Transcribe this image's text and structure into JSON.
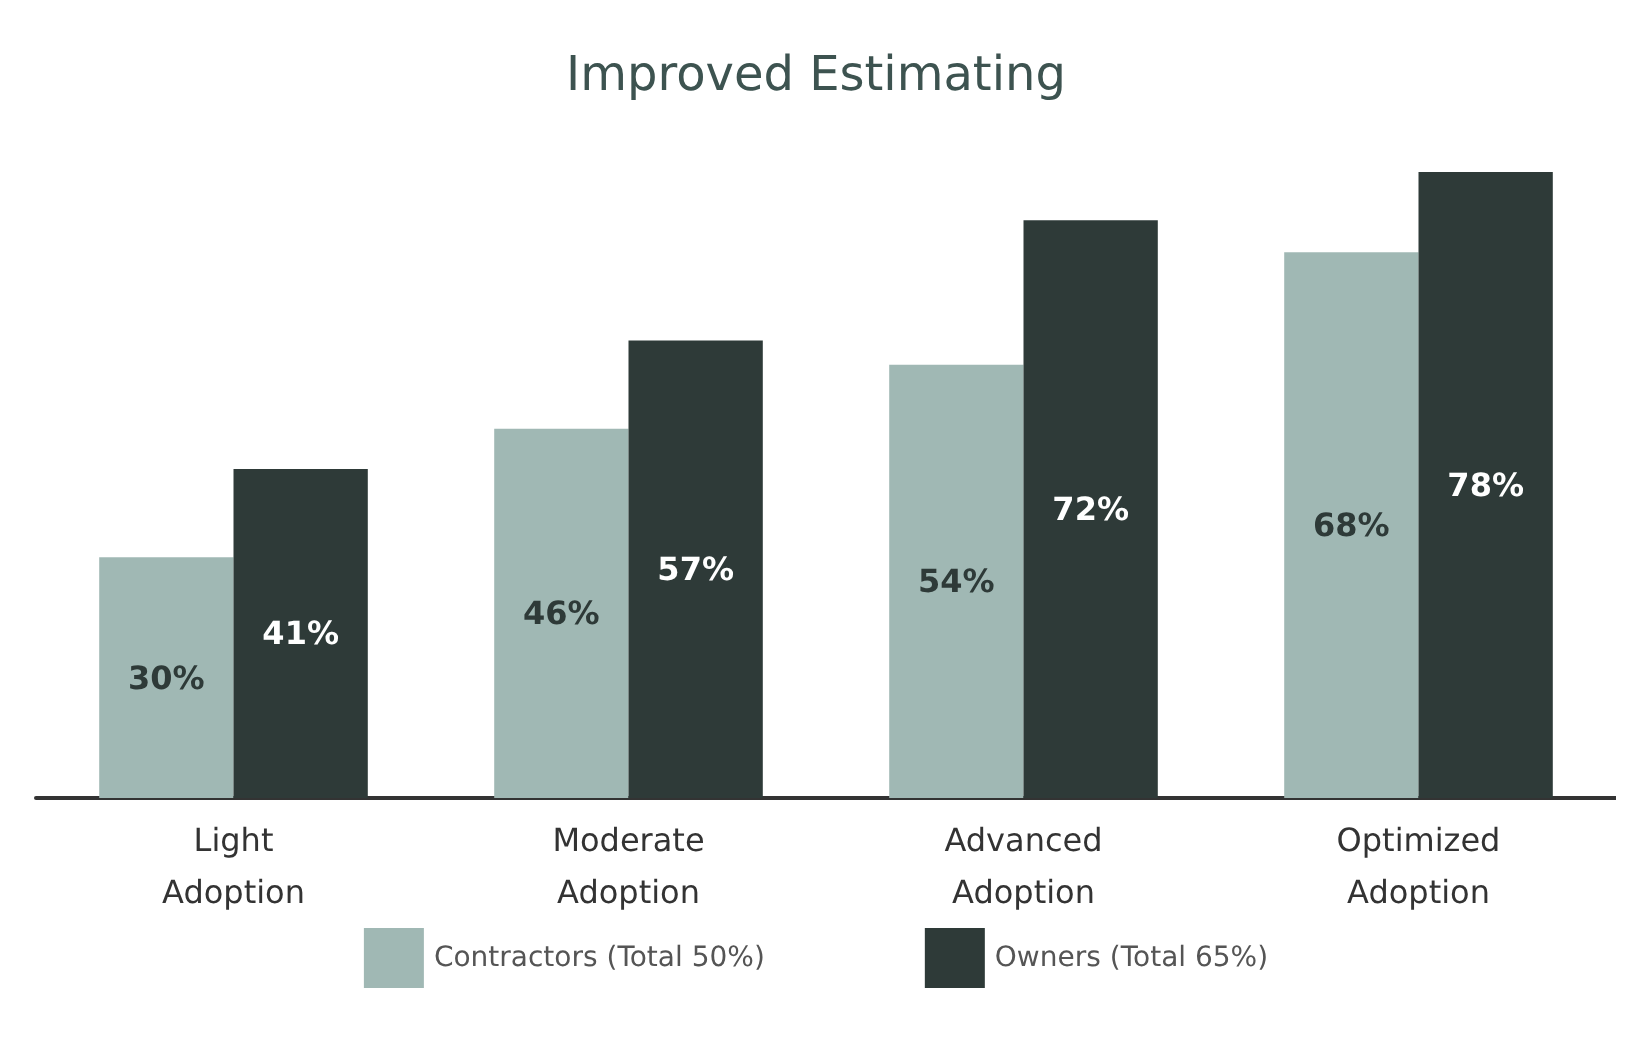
{
  "chart_data": {
    "type": "bar",
    "title": "Improved Estimating",
    "categories": [
      "Light Adoption",
      "Moderate Adoption",
      "Advanced Adoption",
      "Optimized Adoption"
    ],
    "series": [
      {
        "name": "Contractors (Total 50%)",
        "color": "#a0b8b4",
        "values": [
          30,
          46,
          54,
          68
        ],
        "value_labels": [
          "30%",
          "46%",
          "54%",
          "68%"
        ]
      },
      {
        "name": "Owners (Total 65%)",
        "color": "#2e3a38",
        "values": [
          41,
          57,
          72,
          78
        ],
        "value_labels": [
          "41%",
          "57%",
          "72%",
          "78%"
        ]
      }
    ],
    "legend": "bottom"
  }
}
